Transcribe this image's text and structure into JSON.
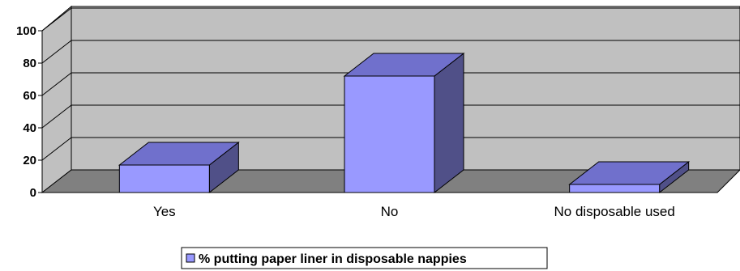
{
  "chart_data": {
    "type": "bar",
    "categories": [
      "Yes",
      "No",
      "No disposable used"
    ],
    "series": [
      {
        "name": "% putting paper liner in disposable nappies",
        "values": [
          17,
          72,
          5
        ]
      }
    ],
    "ylim": [
      0,
      100
    ],
    "yticks": [
      "0",
      "20",
      "40",
      "60",
      "80",
      "100"
    ],
    "grid": true,
    "three_d": true,
    "legend_position": "bottom",
    "colors": {
      "bar_front": "#9999ff",
      "bar_top": "#7070cc",
      "bar_side": "#505088",
      "wall": "#c0c0c0",
      "floor": "#808080",
      "grid": "#000000"
    }
  }
}
